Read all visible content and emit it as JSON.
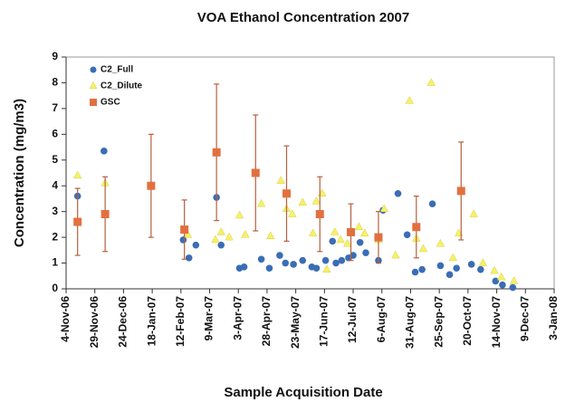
{
  "chart_data": {
    "type": "scatter",
    "title": "VOA Ethanol Concentration 2007",
    "xlabel": "Sample Acquisition Date",
    "ylabel": "Concentration (mg/m3)",
    "xlim": [
      "2006-11-04",
      "2008-01-03"
    ],
    "xticks": [
      {
        "value": "2006-11-04",
        "label": "4-Nov-06"
      },
      {
        "value": "2006-11-29",
        "label": "29-Nov-06"
      },
      {
        "value": "2006-12-24",
        "label": "24-Dec-06"
      },
      {
        "value": "2007-01-18",
        "label": "18-Jan-07"
      },
      {
        "value": "2007-02-12",
        "label": "12-Feb-07"
      },
      {
        "value": "2007-03-09",
        "label": "9-Mar-07"
      },
      {
        "value": "2007-04-03",
        "label": "3-Apr-07"
      },
      {
        "value": "2007-04-28",
        "label": "28-Apr-07"
      },
      {
        "value": "2007-05-23",
        "label": "23-May-07"
      },
      {
        "value": "2007-06-17",
        "label": "17-Jun-07"
      },
      {
        "value": "2007-07-12",
        "label": "12-Jul-07"
      },
      {
        "value": "2007-08-06",
        "label": "6-Aug-07"
      },
      {
        "value": "2007-08-31",
        "label": "31-Aug-07"
      },
      {
        "value": "2007-09-25",
        "label": "25-Sep-07"
      },
      {
        "value": "2007-10-20",
        "label": "20-Oct-07"
      },
      {
        "value": "2007-11-14",
        "label": "14-Nov-07"
      },
      {
        "value": "2007-12-09",
        "label": "9-Dec-07"
      },
      {
        "value": "2008-01-03",
        "label": "3-Jan-08"
      }
    ],
    "ylim": [
      0,
      9
    ],
    "yticks": [
      0,
      1,
      2,
      3,
      4,
      5,
      6,
      7,
      8,
      9
    ],
    "legend": "upper-left",
    "series": [
      {
        "name": "C2_Full",
        "color": "#3a6db5",
        "marker": "circle",
        "x": [
          "2006-11-14",
          "2006-12-07",
          "2007-02-14",
          "2007-02-19",
          "2007-02-25",
          "2007-03-15",
          "2007-03-19",
          "2007-04-04",
          "2007-04-08",
          "2007-04-23",
          "2007-04-30",
          "2007-05-09",
          "2007-05-14",
          "2007-05-21",
          "2007-05-29",
          "2007-06-06",
          "2007-06-10",
          "2007-06-18",
          "2007-06-24",
          "2007-06-27",
          "2007-07-02",
          "2007-07-08",
          "2007-07-12",
          "2007-07-18",
          "2007-07-23",
          "2007-08-03",
          "2007-08-07",
          "2007-08-20",
          "2007-08-28",
          "2007-09-04",
          "2007-09-10",
          "2007-09-19",
          "2007-09-26",
          "2007-10-04",
          "2007-10-10",
          "2007-10-23",
          "2007-10-31",
          "2007-11-13",
          "2007-11-19",
          "2007-11-28"
        ],
        "values": [
          3.6,
          5.35,
          1.9,
          1.2,
          1.7,
          3.55,
          1.7,
          0.8,
          0.85,
          1.15,
          0.8,
          1.3,
          1.0,
          0.95,
          1.1,
          0.85,
          0.8,
          1.1,
          1.85,
          1.0,
          1.1,
          1.2,
          1.3,
          1.8,
          1.4,
          1.1,
          3.05,
          3.7,
          2.1,
          0.65,
          0.75,
          3.3,
          0.9,
          0.55,
          0.8,
          0.95,
          0.75,
          0.3,
          0.15,
          0.05
        ]
      },
      {
        "name": "C2_Dilute",
        "color": "#f6f16a",
        "marker": "triangle",
        "x": [
          "2006-11-14",
          "2006-12-08",
          "2007-02-18",
          "2007-03-14",
          "2007-03-19",
          "2007-03-26",
          "2007-04-04",
          "2007-04-09",
          "2007-04-23",
          "2007-05-01",
          "2007-05-10",
          "2007-05-15",
          "2007-05-20",
          "2007-05-29",
          "2007-06-07",
          "2007-06-10",
          "2007-06-15",
          "2007-06-19",
          "2007-06-26",
          "2007-07-01",
          "2007-07-07",
          "2007-07-17",
          "2007-07-22",
          "2007-08-03",
          "2007-08-08",
          "2007-08-18",
          "2007-08-30",
          "2007-09-05",
          "2007-09-11",
          "2007-09-18",
          "2007-09-26",
          "2007-10-07",
          "2007-10-12",
          "2007-10-25",
          "2007-11-02",
          "2007-11-12",
          "2007-11-18",
          "2007-11-29"
        ],
        "values": [
          4.4,
          4.1,
          2.1,
          1.9,
          2.2,
          2.0,
          2.85,
          2.1,
          3.3,
          2.05,
          4.2,
          3.1,
          2.9,
          3.35,
          2.15,
          3.4,
          3.7,
          0.75,
          2.2,
          1.9,
          1.75,
          2.4,
          2.15,
          1.9,
          3.1,
          1.3,
          7.3,
          1.95,
          1.55,
          8.0,
          1.75,
          1.2,
          2.15,
          2.9,
          1.0,
          0.7,
          0.45,
          0.3
        ]
      },
      {
        "name": "GSC",
        "color": "#e2703f",
        "marker": "square",
        "error_color": "#b5603e",
        "x": [
          "2006-11-14",
          "2006-12-08",
          "2007-01-17",
          "2007-02-15",
          "2007-03-15",
          "2007-04-18",
          "2007-05-15",
          "2007-06-13",
          "2007-07-10",
          "2007-08-03",
          "2007-09-05",
          "2007-10-14"
        ],
        "values": [
          2.6,
          2.9,
          4.0,
          2.3,
          5.3,
          4.5,
          3.7,
          2.9,
          2.2,
          2.0,
          2.4,
          3.8
        ],
        "errors": [
          1.3,
          1.45,
          2.0,
          1.15,
          2.65,
          2.25,
          1.85,
          1.45,
          1.1,
          1.0,
          1.2,
          1.9
        ]
      }
    ]
  }
}
